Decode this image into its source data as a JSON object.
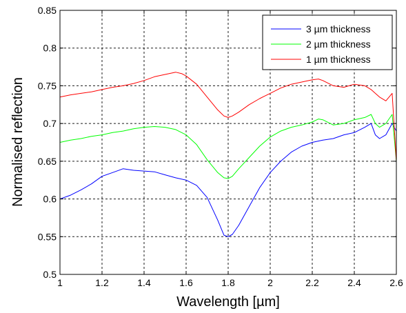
{
  "chart_data": {
    "type": "line",
    "xlabel": "Wavelength [µm]",
    "ylabel": "Normalised reflection",
    "xlim": [
      1,
      2.6
    ],
    "ylim": [
      0.5,
      0.85
    ],
    "xticks": [
      "1",
      "1.2",
      "1.4",
      "1.6",
      "1.8",
      "2",
      "2.2",
      "2.4",
      "2.6"
    ],
    "yticks": [
      "0.5",
      "0.55",
      "0.6",
      "0.65",
      "0.7",
      "0.75",
      "0.8",
      "0.85"
    ],
    "grid": true,
    "legend_position": "top-right",
    "series": [
      {
        "name": "3 µm thickness",
        "color": "#0000ff",
        "x": [
          1.0,
          1.05,
          1.1,
          1.15,
          1.2,
          1.25,
          1.3,
          1.35,
          1.4,
          1.45,
          1.5,
          1.55,
          1.6,
          1.65,
          1.7,
          1.75,
          1.78,
          1.8,
          1.82,
          1.85,
          1.9,
          1.95,
          2.0,
          2.05,
          2.1,
          2.15,
          2.2,
          2.25,
          2.3,
          2.35,
          2.4,
          2.45,
          2.48,
          2.5,
          2.52,
          2.55,
          2.58,
          2.6
        ],
        "y": [
          0.6,
          0.605,
          0.612,
          0.62,
          0.63,
          0.635,
          0.64,
          0.638,
          0.637,
          0.636,
          0.632,
          0.628,
          0.625,
          0.618,
          0.602,
          0.572,
          0.552,
          0.55,
          0.553,
          0.565,
          0.59,
          0.615,
          0.635,
          0.65,
          0.662,
          0.67,
          0.675,
          0.678,
          0.68,
          0.685,
          0.688,
          0.695,
          0.7,
          0.685,
          0.68,
          0.685,
          0.7,
          0.69
        ]
      },
      {
        "name": "2 µm thickness",
        "color": "#00ff00",
        "x": [
          1.0,
          1.05,
          1.1,
          1.15,
          1.2,
          1.25,
          1.3,
          1.35,
          1.4,
          1.45,
          1.5,
          1.55,
          1.6,
          1.65,
          1.7,
          1.75,
          1.78,
          1.8,
          1.82,
          1.85,
          1.9,
          1.95,
          2.0,
          2.05,
          2.1,
          2.15,
          2.2,
          2.23,
          2.25,
          2.3,
          2.35,
          2.4,
          2.45,
          2.48,
          2.5,
          2.52,
          2.55,
          2.58,
          2.6
        ],
        "y": [
          0.675,
          0.678,
          0.68,
          0.683,
          0.685,
          0.688,
          0.69,
          0.693,
          0.695,
          0.696,
          0.695,
          0.692,
          0.685,
          0.672,
          0.652,
          0.635,
          0.628,
          0.627,
          0.63,
          0.64,
          0.655,
          0.67,
          0.682,
          0.69,
          0.695,
          0.698,
          0.702,
          0.706,
          0.705,
          0.698,
          0.7,
          0.705,
          0.708,
          0.712,
          0.7,
          0.695,
          0.7,
          0.712,
          0.65
        ]
      },
      {
        "name": "1 µm thickness",
        "color": "#ff0000",
        "x": [
          1.0,
          1.05,
          1.1,
          1.15,
          1.2,
          1.25,
          1.3,
          1.35,
          1.4,
          1.45,
          1.5,
          1.55,
          1.58,
          1.6,
          1.65,
          1.7,
          1.75,
          1.78,
          1.8,
          1.82,
          1.85,
          1.9,
          1.95,
          2.0,
          2.05,
          2.1,
          2.15,
          2.2,
          2.23,
          2.25,
          2.3,
          2.35,
          2.4,
          2.45,
          2.48,
          2.5,
          2.52,
          2.55,
          2.58,
          2.6
        ],
        "y": [
          0.735,
          0.738,
          0.74,
          0.742,
          0.745,
          0.748,
          0.75,
          0.753,
          0.757,
          0.762,
          0.765,
          0.768,
          0.766,
          0.763,
          0.752,
          0.735,
          0.718,
          0.71,
          0.708,
          0.71,
          0.715,
          0.725,
          0.733,
          0.74,
          0.747,
          0.752,
          0.755,
          0.758,
          0.759,
          0.757,
          0.75,
          0.748,
          0.752,
          0.75,
          0.745,
          0.74,
          0.735,
          0.73,
          0.74,
          0.65
        ]
      }
    ]
  }
}
